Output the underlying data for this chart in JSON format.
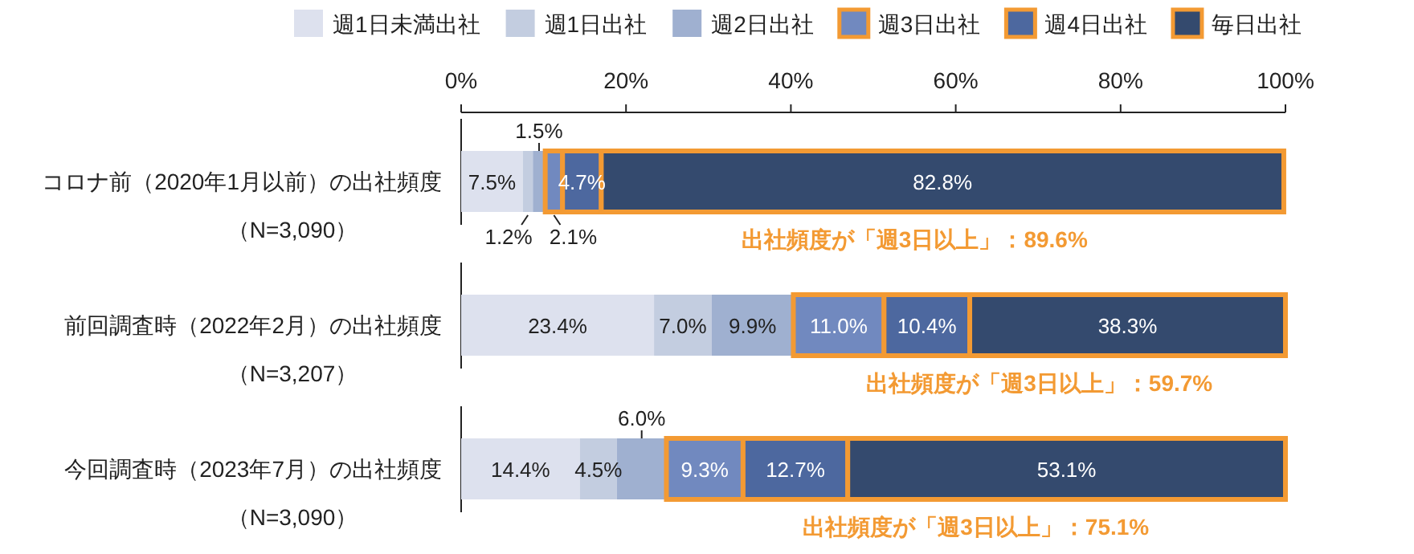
{
  "chart_data": {
    "type": "bar",
    "orientation": "horizontal",
    "stacked": true,
    "legend": "top",
    "grid": false,
    "categories": [
      "コロナ前（2020年1月以前）の出社頻度（N=3,090）",
      "前回調査時（2022年2月）の出社頻度（N=3,207）",
      "今回調査時（2023年7月）の出社頻度（N=3,090）"
    ],
    "xlim": [
      0,
      100
    ],
    "xticks": [
      {
        "value": 0,
        "label": "0%"
      },
      {
        "value": 20,
        "label": "20%"
      },
      {
        "value": 40,
        "label": "40%"
      },
      {
        "value": 60,
        "label": "60%"
      },
      {
        "value": 80,
        "label": "80%"
      },
      {
        "value": 100,
        "label": "100%"
      }
    ],
    "series": [
      {
        "name": "週1日未満出社",
        "color": "#dde1ee",
        "values": [
          7.5,
          23.4,
          14.4
        ],
        "value_labels": [
          "7.5%",
          "23.4%",
          "14.4%"
        ]
      },
      {
        "name": "週1日出社",
        "color": "#c3cde0",
        "values": [
          1.2,
          7.0,
          4.5
        ],
        "value_labels": [
          "1.2%",
          "7.0%",
          "4.5%"
        ]
      },
      {
        "name": "週2日出社",
        "color": "#9fb0d0",
        "values": [
          1.5,
          9.9,
          6.0
        ],
        "value_labels": [
          "1.5%",
          "9.9%",
          "6.0%"
        ]
      },
      {
        "name": "週3日出社",
        "color": "#7189bf",
        "values": [
          2.1,
          11.0,
          9.3
        ],
        "value_labels": [
          "2.1%",
          "11.0%",
          "9.3%"
        ]
      },
      {
        "name": "週4日出社",
        "color": "#4d689f",
        "values": [
          4.7,
          10.4,
          12.7
        ],
        "value_labels": [
          "4.7%",
          "10.4%",
          "12.7%"
        ]
      },
      {
        "name": "毎日出社",
        "color": "#344a6e",
        "values": [
          82.8,
          38.3,
          53.1
        ],
        "value_labels": [
          "82.8%",
          "38.3%",
          "53.1%"
        ]
      }
    ],
    "annotations": [
      {
        "text": "出社頻度が「週3日以上」：89.6%",
        "y": "コロナ前（2020年1月以前）の出社頻度（N=3,090）"
      },
      {
        "text": "出社頻度が「週3日以上」：59.7%",
        "y": "前回調査時（2022年2月）の出社頻度（N=3,207）"
      },
      {
        "text": "出社頻度が「週3日以上」：75.1%",
        "y": "今回調査時（2023年7月）の出社頻度（N=3,090）"
      }
    ]
  }
}
